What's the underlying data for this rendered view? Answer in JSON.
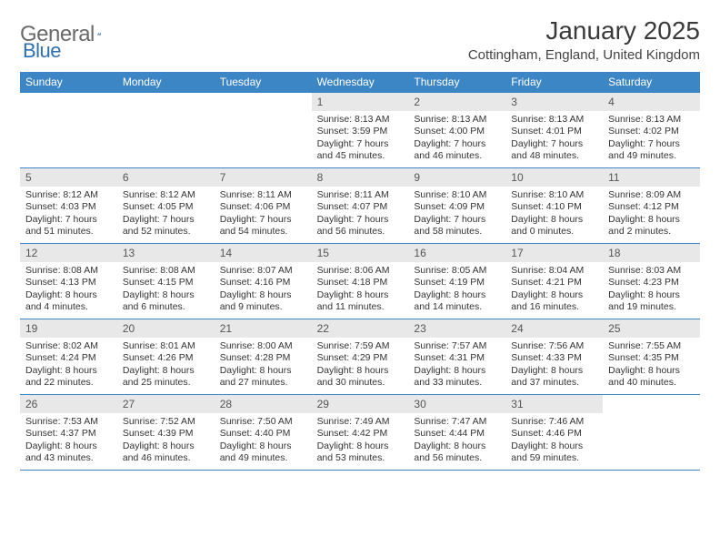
{
  "brand": {
    "text1": "General",
    "text2": "Blue"
  },
  "title": "January 2025",
  "location": "Cottingham, England, United Kingdom",
  "colors": {
    "header_bg": "#3d86c6",
    "header_text": "#ffffff",
    "daynum_bg": "#e8e8e8",
    "daynum_text": "#555555",
    "body_text": "#333333",
    "rule": "#3d86c6",
    "brand_gray": "#6a6a6a",
    "brand_blue": "#2e6fb0"
  },
  "weekdays": [
    "Sunday",
    "Monday",
    "Tuesday",
    "Wednesday",
    "Thursday",
    "Friday",
    "Saturday"
  ],
  "leading_blanks": 3,
  "days": [
    {
      "n": 1,
      "sunrise": "8:13 AM",
      "sunset": "3:59 PM",
      "dl": "7 hours and 45 minutes."
    },
    {
      "n": 2,
      "sunrise": "8:13 AM",
      "sunset": "4:00 PM",
      "dl": "7 hours and 46 minutes."
    },
    {
      "n": 3,
      "sunrise": "8:13 AM",
      "sunset": "4:01 PM",
      "dl": "7 hours and 48 minutes."
    },
    {
      "n": 4,
      "sunrise": "8:13 AM",
      "sunset": "4:02 PM",
      "dl": "7 hours and 49 minutes."
    },
    {
      "n": 5,
      "sunrise": "8:12 AM",
      "sunset": "4:03 PM",
      "dl": "7 hours and 51 minutes."
    },
    {
      "n": 6,
      "sunrise": "8:12 AM",
      "sunset": "4:05 PM",
      "dl": "7 hours and 52 minutes."
    },
    {
      "n": 7,
      "sunrise": "8:11 AM",
      "sunset": "4:06 PM",
      "dl": "7 hours and 54 minutes."
    },
    {
      "n": 8,
      "sunrise": "8:11 AM",
      "sunset": "4:07 PM",
      "dl": "7 hours and 56 minutes."
    },
    {
      "n": 9,
      "sunrise": "8:10 AM",
      "sunset": "4:09 PM",
      "dl": "7 hours and 58 minutes."
    },
    {
      "n": 10,
      "sunrise": "8:10 AM",
      "sunset": "4:10 PM",
      "dl": "8 hours and 0 minutes."
    },
    {
      "n": 11,
      "sunrise": "8:09 AM",
      "sunset": "4:12 PM",
      "dl": "8 hours and 2 minutes."
    },
    {
      "n": 12,
      "sunrise": "8:08 AM",
      "sunset": "4:13 PM",
      "dl": "8 hours and 4 minutes."
    },
    {
      "n": 13,
      "sunrise": "8:08 AM",
      "sunset": "4:15 PM",
      "dl": "8 hours and 6 minutes."
    },
    {
      "n": 14,
      "sunrise": "8:07 AM",
      "sunset": "4:16 PM",
      "dl": "8 hours and 9 minutes."
    },
    {
      "n": 15,
      "sunrise": "8:06 AM",
      "sunset": "4:18 PM",
      "dl": "8 hours and 11 minutes."
    },
    {
      "n": 16,
      "sunrise": "8:05 AM",
      "sunset": "4:19 PM",
      "dl": "8 hours and 14 minutes."
    },
    {
      "n": 17,
      "sunrise": "8:04 AM",
      "sunset": "4:21 PM",
      "dl": "8 hours and 16 minutes."
    },
    {
      "n": 18,
      "sunrise": "8:03 AM",
      "sunset": "4:23 PM",
      "dl": "8 hours and 19 minutes."
    },
    {
      "n": 19,
      "sunrise": "8:02 AM",
      "sunset": "4:24 PM",
      "dl": "8 hours and 22 minutes."
    },
    {
      "n": 20,
      "sunrise": "8:01 AM",
      "sunset": "4:26 PM",
      "dl": "8 hours and 25 minutes."
    },
    {
      "n": 21,
      "sunrise": "8:00 AM",
      "sunset": "4:28 PM",
      "dl": "8 hours and 27 minutes."
    },
    {
      "n": 22,
      "sunrise": "7:59 AM",
      "sunset": "4:29 PM",
      "dl": "8 hours and 30 minutes."
    },
    {
      "n": 23,
      "sunrise": "7:57 AM",
      "sunset": "4:31 PM",
      "dl": "8 hours and 33 minutes."
    },
    {
      "n": 24,
      "sunrise": "7:56 AM",
      "sunset": "4:33 PM",
      "dl": "8 hours and 37 minutes."
    },
    {
      "n": 25,
      "sunrise": "7:55 AM",
      "sunset": "4:35 PM",
      "dl": "8 hours and 40 minutes."
    },
    {
      "n": 26,
      "sunrise": "7:53 AM",
      "sunset": "4:37 PM",
      "dl": "8 hours and 43 minutes."
    },
    {
      "n": 27,
      "sunrise": "7:52 AM",
      "sunset": "4:39 PM",
      "dl": "8 hours and 46 minutes."
    },
    {
      "n": 28,
      "sunrise": "7:50 AM",
      "sunset": "4:40 PM",
      "dl": "8 hours and 49 minutes."
    },
    {
      "n": 29,
      "sunrise": "7:49 AM",
      "sunset": "4:42 PM",
      "dl": "8 hours and 53 minutes."
    },
    {
      "n": 30,
      "sunrise": "7:47 AM",
      "sunset": "4:44 PM",
      "dl": "8 hours and 56 minutes."
    },
    {
      "n": 31,
      "sunrise": "7:46 AM",
      "sunset": "4:46 PM",
      "dl": "8 hours and 59 minutes."
    }
  ],
  "labels": {
    "sunrise": "Sunrise:",
    "sunset": "Sunset:",
    "daylight": "Daylight:"
  }
}
